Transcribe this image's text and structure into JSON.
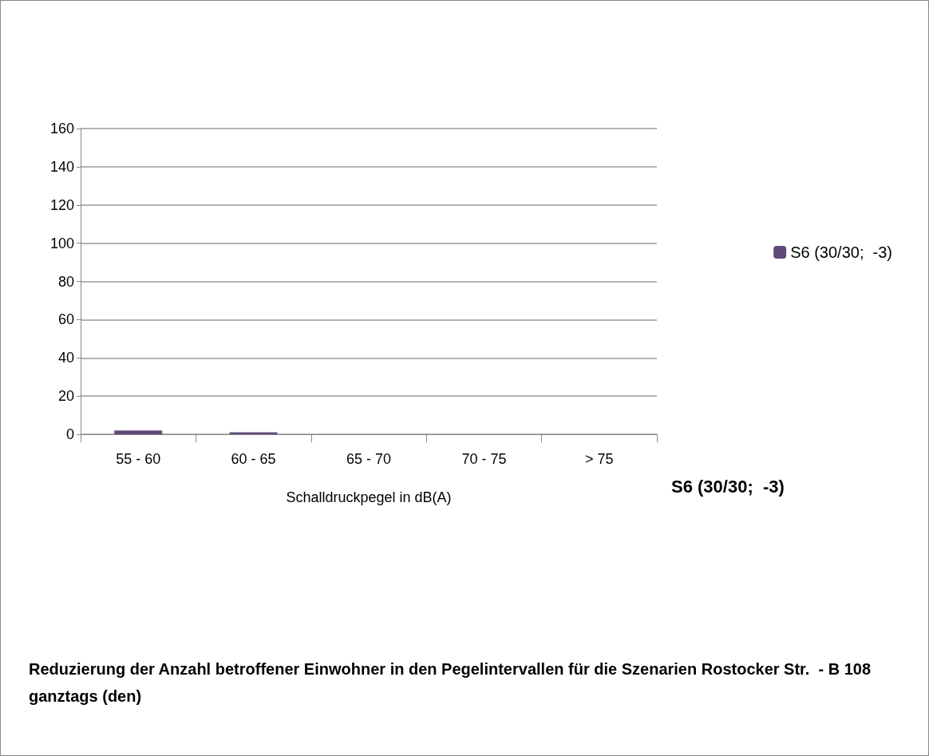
{
  "chart_data": {
    "type": "bar",
    "title": "Reduzierung der Anzahl betroffener Einwohner in den Pegelintervallen für die Szenarien Rostocker Str.  - B 108 ganztags (den)",
    "xlabel": "Schalldruckpegel in dB(A)",
    "categories": [
      "55 - 60",
      "60 - 65",
      "65 - 70",
      "70 - 75",
      "> 75"
    ],
    "series": [
      {
        "name": "S6 (30/30;  -3)",
        "color": "#604a7b",
        "values": [
          2,
          1,
          0,
          0,
          0
        ]
      }
    ],
    "ylim": [
      0,
      160
    ],
    "yticks": [
      0,
      20,
      40,
      60,
      80,
      100,
      120,
      140,
      160
    ],
    "grid": "y",
    "legend": "right"
  }
}
